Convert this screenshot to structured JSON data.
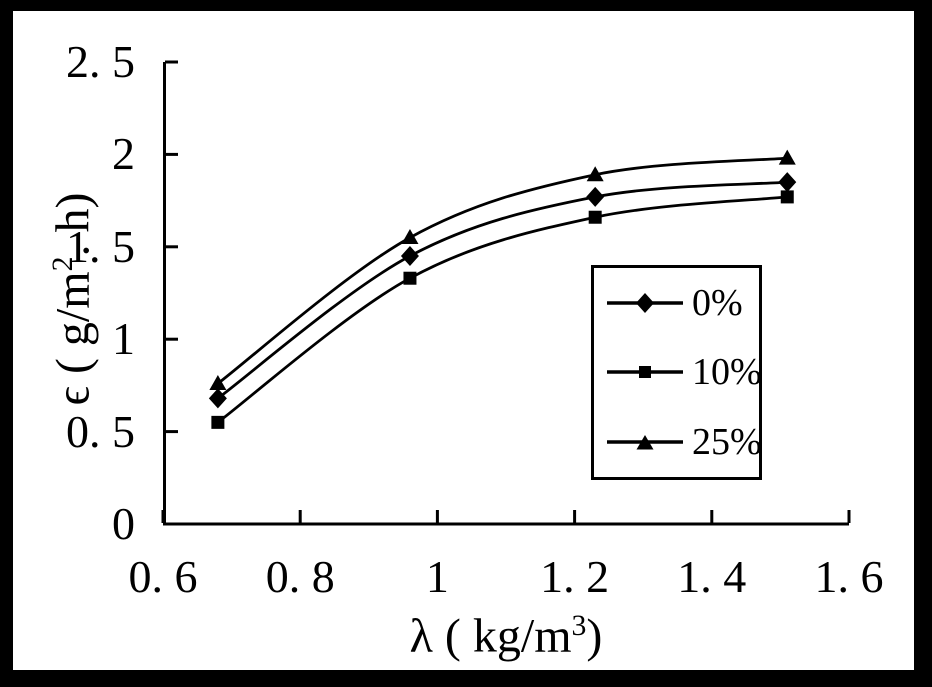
{
  "chart_data": {
    "type": "line",
    "title": "",
    "xlabel": "λ (kg/m³)",
    "ylabel": "ϵ (g/m². h)",
    "xlabel_rich": {
      "pre": "λ ( kg/m",
      "sup": "3",
      "post": ")"
    },
    "ylabel_rich": {
      "pre": "ϵ ( g/m",
      "sup": "2",
      "post": ". h)"
    },
    "xlim": [
      0.6,
      1.6
    ],
    "ylim": [
      0,
      2.5
    ],
    "grid": false,
    "legend_position": "inside-right",
    "line_color": "#000000",
    "background_color": "#ffffff",
    "frame_color": "#000000",
    "x_ticks": {
      "values": [
        0.6,
        0.8,
        1.0,
        1.2,
        1.4,
        1.6
      ],
      "labels": [
        "0. 6",
        "0. 8",
        "1",
        "1. 2",
        "1. 4",
        "1. 6"
      ]
    },
    "y_ticks": {
      "values": [
        0,
        0.5,
        1.0,
        1.5,
        2.0,
        2.5
      ],
      "labels": [
        "0",
        "0. 5",
        "1",
        "1. 5",
        "2",
        "2. 5"
      ]
    },
    "x": [
      0.68,
      0.96,
      1.23,
      1.51
    ],
    "series": [
      {
        "name": "0%",
        "marker": "diamond",
        "values": [
          0.68,
          1.45,
          1.77,
          1.85
        ]
      },
      {
        "name": "10%",
        "marker": "square",
        "values": [
          0.55,
          1.33,
          1.66,
          1.77
        ]
      },
      {
        "name": "25%",
        "marker": "triangle",
        "values": [
          0.76,
          1.55,
          1.89,
          1.98
        ]
      }
    ]
  }
}
